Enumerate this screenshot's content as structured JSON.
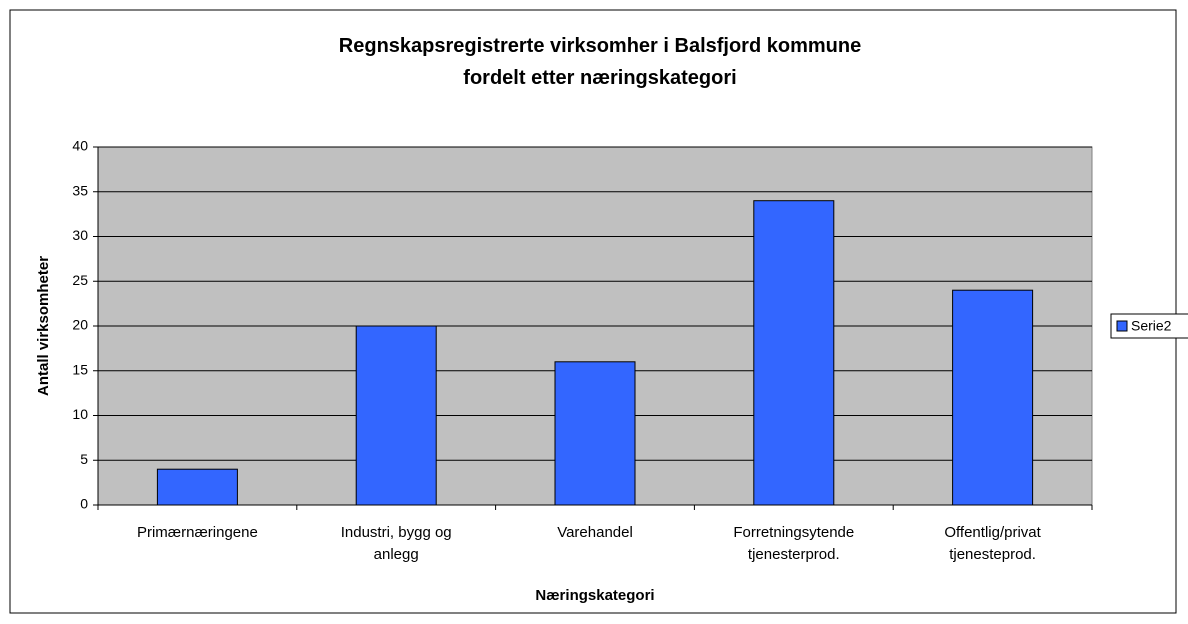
{
  "chart_data": {
    "type": "bar",
    "title": "Regnskapsregistrerte virksomher i Balsfjord kommune\nfordelt etter næringskategori",
    "x_label": "Næringskategori",
    "y_label": "Antall virksomheter",
    "categories": [
      "Primærnæringene",
      "Industri, bygg og anlegg",
      "Varehandel",
      "Forretningsytende tjenesterprod.",
      "Offentlig/privat tjenesteprod."
    ],
    "series": [
      {
        "name": "Serie2",
        "color": "#3366ff",
        "values": [
          4,
          20,
          16,
          34,
          24
        ]
      }
    ],
    "ylim": [
      0,
      40
    ],
    "yticks": [
      0,
      5,
      10,
      15,
      20,
      25,
      30,
      35,
      40
    ],
    "grid": true,
    "legend": "right"
  }
}
